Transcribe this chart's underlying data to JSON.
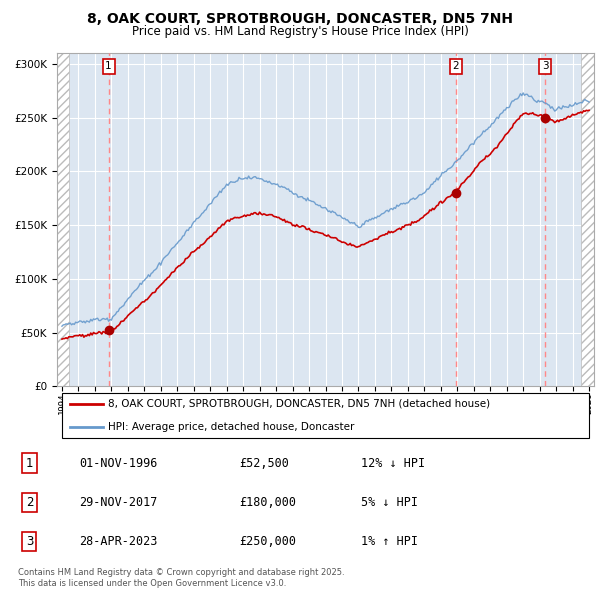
{
  "title": "8, OAK COURT, SPROTBROUGH, DONCASTER, DN5 7NH",
  "subtitle": "Price paid vs. HM Land Registry's House Price Index (HPI)",
  "ylim": [
    0,
    310000
  ],
  "yticks": [
    0,
    50000,
    100000,
    150000,
    200000,
    250000,
    300000
  ],
  "ytick_labels": [
    "£0",
    "£50K",
    "£100K",
    "£150K",
    "£200K",
    "£250K",
    "£300K"
  ],
  "xmin": 1993.7,
  "xmax": 2026.3,
  "sale_dates": [
    1996.833,
    2017.917,
    2023.33
  ],
  "sale_prices": [
    52500,
    180000,
    250000
  ],
  "sale_labels": [
    "1",
    "2",
    "3"
  ],
  "sale_info": [
    {
      "num": "1",
      "date": "01-NOV-1996",
      "price": "£52,500",
      "hpi": "12% ↓ HPI"
    },
    {
      "num": "2",
      "date": "29-NOV-2017",
      "price": "£180,000",
      "hpi": "5% ↓ HPI"
    },
    {
      "num": "3",
      "date": "28-APR-2023",
      "price": "£250,000",
      "hpi": "1% ↑ HPI"
    }
  ],
  "legend_line1": "8, OAK COURT, SPROTBROUGH, DONCASTER, DN5 7NH (detached house)",
  "legend_line2": "HPI: Average price, detached house, Doncaster",
  "copyright": "Contains HM Land Registry data © Crown copyright and database right 2025.\nThis data is licensed under the Open Government Licence v3.0.",
  "bg_color": "#ffffff",
  "plot_bg_color": "#dce6f1",
  "grid_color": "#ffffff",
  "hpi_color": "#6699cc",
  "price_color": "#cc0000",
  "sale_marker_color": "#aa0000",
  "dashed_line_color": "#ff8888"
}
